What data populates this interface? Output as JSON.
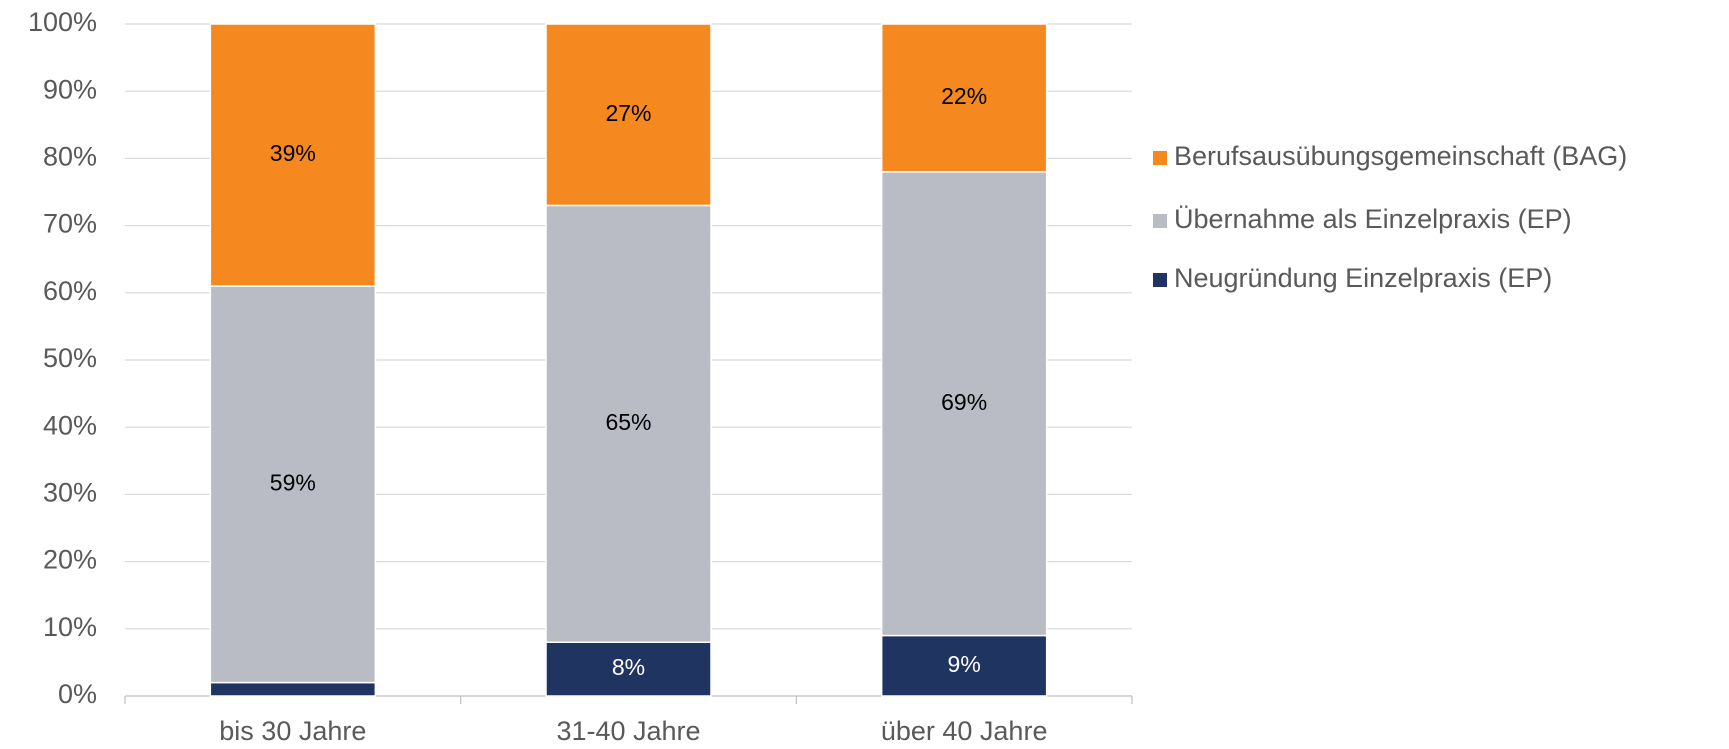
{
  "chart_data": {
    "type": "stacked_bar",
    "categories": [
      "bis 30 Jahre",
      "31-40 Jahre",
      "über 40 Jahre"
    ],
    "series": [
      {
        "name": "Neugründung Einzelpraxis (EP)",
        "color": "#1f3461",
        "values": [
          2,
          8,
          9
        ],
        "value_labels": [
          null,
          "8%",
          "9%"
        ]
      },
      {
        "name": "Übernahme als Einzelpraxis (EP)",
        "color": "#b9bbc5",
        "values": [
          59,
          65,
          69
        ],
        "value_labels": [
          "59%",
          "65%",
          "69%"
        ]
      },
      {
        "name": "Berufsausübungsgemeinschaft (BAG)",
        "color": "#f5881f",
        "values": [
          39,
          27,
          22
        ],
        "value_labels": [
          "39%",
          "27%",
          "22%"
        ]
      }
    ],
    "ylim": [
      0,
      100
    ],
    "yticks": [
      {
        "value": 0,
        "label": "0%"
      },
      {
        "value": 10,
        "label": "10%"
      },
      {
        "value": 20,
        "label": "20%"
      },
      {
        "value": 30,
        "label": "30%"
      },
      {
        "value": 40,
        "label": "40%"
      },
      {
        "value": 50,
        "label": "50%"
      },
      {
        "value": 60,
        "label": "60%"
      },
      {
        "value": 70,
        "label": "70%"
      },
      {
        "value": 80,
        "label": "80%"
      },
      {
        "value": 90,
        "label": "90%"
      },
      {
        "value": 100,
        "label": "100%"
      }
    ],
    "grid": true,
    "legend": "right"
  }
}
